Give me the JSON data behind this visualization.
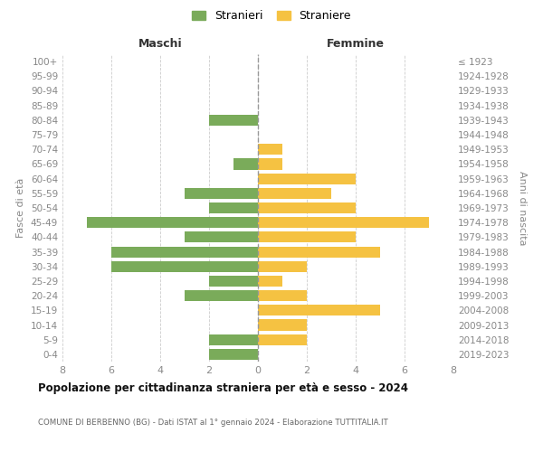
{
  "age_groups": [
    "100+",
    "95-99",
    "90-94",
    "85-89",
    "80-84",
    "75-79",
    "70-74",
    "65-69",
    "60-64",
    "55-59",
    "50-54",
    "45-49",
    "40-44",
    "35-39",
    "30-34",
    "25-29",
    "20-24",
    "15-19",
    "10-14",
    "5-9",
    "0-4"
  ],
  "birth_years": [
    "≤ 1923",
    "1924-1928",
    "1929-1933",
    "1934-1938",
    "1939-1943",
    "1944-1948",
    "1949-1953",
    "1954-1958",
    "1959-1963",
    "1964-1968",
    "1969-1973",
    "1974-1978",
    "1979-1983",
    "1984-1988",
    "1989-1993",
    "1994-1998",
    "1999-2003",
    "2004-2008",
    "2009-2013",
    "2014-2018",
    "2019-2023"
  ],
  "maschi": [
    0,
    0,
    0,
    0,
    2,
    0,
    0,
    1,
    0,
    3,
    2,
    7,
    3,
    6,
    6,
    2,
    3,
    0,
    0,
    2,
    2
  ],
  "femmine": [
    0,
    0,
    0,
    0,
    0,
    0,
    1,
    1,
    4,
    3,
    4,
    7,
    4,
    5,
    2,
    1,
    2,
    5,
    2,
    2,
    0
  ],
  "maschi_color": "#7aab5a",
  "femmine_color": "#f5c242",
  "title_main": "Popolazione per cittadinanza straniera per età e sesso - 2024",
  "subtitle": "COMUNE DI BERBENNO (BG) - Dati ISTAT al 1° gennaio 2024 - Elaborazione TUTTITALIA.IT",
  "legend_maschi": "Stranieri",
  "legend_femmine": "Straniere",
  "header_left": "Maschi",
  "header_right": "Femmine",
  "ylabel_left": "Fasce di età",
  "ylabel_right": "Anni di nascita",
  "xlim": 8,
  "background_color": "#ffffff",
  "grid_color": "#cccccc",
  "tick_color": "#888888",
  "bar_height": 0.75
}
